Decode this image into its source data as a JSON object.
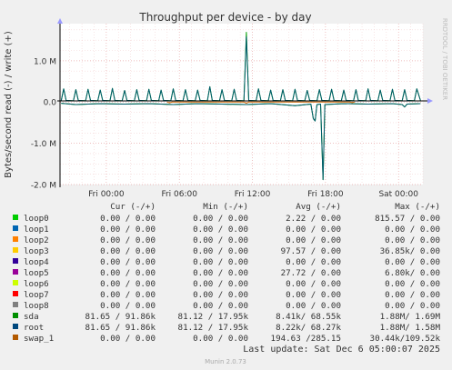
{
  "chart_data": {
    "type": "line",
    "title": "Throughput per device - by day",
    "ylabel": "Bytes/second read (-) / write (+)",
    "side_label": "RRDTOOL / TOBI OETIKER",
    "ylim": [
      -2000000,
      1900000
    ],
    "yticks": [
      {
        "value": 1000000,
        "label": "1.0 M"
      },
      {
        "value": 0,
        "label": "0.0"
      },
      {
        "value": -1000000,
        "label": "-1.0 M"
      },
      {
        "value": -2000000,
        "label": "-2.0 M"
      }
    ],
    "xlim_hours": [
      20.2,
      50.0
    ],
    "xticks": [
      {
        "hour": 24,
        "label": "Fri 00:00"
      },
      {
        "hour": 30,
        "label": "Fri 06:00"
      },
      {
        "hour": 36,
        "label": "Fri 12:00"
      },
      {
        "hour": 42,
        "label": "Fri 18:00"
      },
      {
        "hour": 48,
        "label": "Sat 00:00"
      }
    ],
    "grid": true,
    "series": [
      {
        "name": "sda",
        "color": "#00a000",
        "points": [
          [
            20.3,
            30000
          ],
          [
            20.5,
            320000
          ],
          [
            20.7,
            40000
          ],
          [
            21.3,
            30000
          ],
          [
            21.5,
            300000
          ],
          [
            21.7,
            40000
          ],
          [
            22.3,
            30000
          ],
          [
            22.5,
            310000
          ],
          [
            22.7,
            40000
          ],
          [
            23.3,
            30000
          ],
          [
            23.5,
            290000
          ],
          [
            23.7,
            40000
          ],
          [
            24.3,
            30000
          ],
          [
            24.5,
            330000
          ],
          [
            24.7,
            40000
          ],
          [
            25.3,
            30000
          ],
          [
            25.5,
            280000
          ],
          [
            25.7,
            40000
          ],
          [
            26.3,
            30000
          ],
          [
            26.5,
            300000
          ],
          [
            26.7,
            40000
          ],
          [
            27.3,
            30000
          ],
          [
            27.5,
            310000
          ],
          [
            27.7,
            40000
          ],
          [
            28.3,
            30000
          ],
          [
            28.5,
            290000
          ],
          [
            28.7,
            40000
          ],
          [
            29.3,
            30000
          ],
          [
            29.5,
            320000
          ],
          [
            29.7,
            40000
          ],
          [
            30.3,
            30000
          ],
          [
            30.5,
            300000
          ],
          [
            30.7,
            40000
          ],
          [
            31.3,
            30000
          ],
          [
            31.5,
            290000
          ],
          [
            31.7,
            40000
          ],
          [
            32.3,
            30000
          ],
          [
            32.5,
            370000
          ],
          [
            32.7,
            40000
          ],
          [
            33.3,
            30000
          ],
          [
            33.5,
            300000
          ],
          [
            33.7,
            40000
          ],
          [
            34.3,
            30000
          ],
          [
            34.5,
            310000
          ],
          [
            34.7,
            40000
          ],
          [
            35.3,
            30000
          ],
          [
            35.5,
            1690000
          ],
          [
            35.7,
            40000
          ],
          [
            36.3,
            30000
          ],
          [
            36.5,
            320000
          ],
          [
            36.7,
            40000
          ],
          [
            37.3,
            30000
          ],
          [
            37.5,
            290000
          ],
          [
            37.7,
            40000
          ],
          [
            38.3,
            30000
          ],
          [
            38.5,
            300000
          ],
          [
            38.7,
            40000
          ],
          [
            39.3,
            30000
          ],
          [
            39.5,
            310000
          ],
          [
            39.7,
            40000
          ],
          [
            40.3,
            30000
          ],
          [
            40.5,
            280000
          ],
          [
            40.7,
            40000
          ],
          [
            41.3,
            30000
          ],
          [
            41.5,
            300000
          ],
          [
            41.7,
            40000
          ],
          [
            42.3,
            30000
          ],
          [
            42.5,
            310000
          ],
          [
            42.7,
            40000
          ],
          [
            43.3,
            30000
          ],
          [
            43.5,
            290000
          ],
          [
            43.7,
            40000
          ],
          [
            44.3,
            30000
          ],
          [
            44.5,
            300000
          ],
          [
            44.7,
            40000
          ],
          [
            45.3,
            30000
          ],
          [
            45.5,
            320000
          ],
          [
            45.7,
            40000
          ],
          [
            46.3,
            30000
          ],
          [
            46.5,
            290000
          ],
          [
            46.7,
            40000
          ],
          [
            47.3,
            30000
          ],
          [
            47.5,
            310000
          ],
          [
            47.7,
            40000
          ],
          [
            48.3,
            30000
          ],
          [
            48.5,
            300000
          ],
          [
            48.7,
            40000
          ],
          [
            49.3,
            30000
          ],
          [
            49.5,
            320000
          ],
          [
            49.8,
            40000
          ]
        ]
      },
      {
        "name": "sda",
        "color": "#00a000",
        "points": [
          [
            20.3,
            -30000
          ],
          [
            21.5,
            -60000
          ],
          [
            23.5,
            -40000
          ],
          [
            25.5,
            -50000
          ],
          [
            27.5,
            -40000
          ],
          [
            29.5,
            -60000
          ],
          [
            31.5,
            -40000
          ],
          [
            33.5,
            -50000
          ],
          [
            35.5,
            -60000
          ],
          [
            37.5,
            -40000
          ],
          [
            39.5,
            -90000
          ],
          [
            40.8,
            -50000
          ],
          [
            41.0,
            -400000
          ],
          [
            41.15,
            -460000
          ],
          [
            41.3,
            -60000
          ],
          [
            41.6,
            -50000
          ],
          [
            41.8,
            -1880000
          ],
          [
            41.95,
            -60000
          ],
          [
            43.5,
            -40000
          ],
          [
            45.5,
            -50000
          ],
          [
            47.5,
            -40000
          ],
          [
            48.3,
            -60000
          ],
          [
            48.5,
            -120000
          ],
          [
            48.7,
            -50000
          ],
          [
            49.8,
            -40000
          ]
        ]
      },
      {
        "name": "root",
        "color": "#005a6e",
        "points": [
          [
            20.3,
            30000
          ],
          [
            20.5,
            320000
          ],
          [
            20.7,
            40000
          ],
          [
            21.3,
            30000
          ],
          [
            21.5,
            300000
          ],
          [
            21.7,
            40000
          ],
          [
            22.3,
            30000
          ],
          [
            22.5,
            310000
          ],
          [
            22.7,
            40000
          ],
          [
            23.3,
            30000
          ],
          [
            23.5,
            290000
          ],
          [
            23.7,
            40000
          ],
          [
            24.3,
            30000
          ],
          [
            24.5,
            330000
          ],
          [
            24.7,
            40000
          ],
          [
            25.3,
            30000
          ],
          [
            25.5,
            280000
          ],
          [
            25.7,
            40000
          ],
          [
            26.3,
            30000
          ],
          [
            26.5,
            300000
          ],
          [
            26.7,
            40000
          ],
          [
            27.3,
            30000
          ],
          [
            27.5,
            310000
          ],
          [
            27.7,
            40000
          ],
          [
            28.3,
            30000
          ],
          [
            28.5,
            290000
          ],
          [
            28.7,
            40000
          ],
          [
            29.3,
            30000
          ],
          [
            29.5,
            320000
          ],
          [
            29.7,
            40000
          ],
          [
            30.3,
            30000
          ],
          [
            30.5,
            300000
          ],
          [
            30.7,
            40000
          ],
          [
            31.3,
            30000
          ],
          [
            31.5,
            290000
          ],
          [
            31.7,
            40000
          ],
          [
            32.3,
            30000
          ],
          [
            32.5,
            370000
          ],
          [
            32.7,
            40000
          ],
          [
            33.3,
            30000
          ],
          [
            33.5,
            300000
          ],
          [
            33.7,
            40000
          ],
          [
            34.3,
            30000
          ],
          [
            34.5,
            310000
          ],
          [
            34.7,
            40000
          ],
          [
            35.3,
            30000
          ],
          [
            35.5,
            1580000
          ],
          [
            35.7,
            40000
          ],
          [
            36.3,
            30000
          ],
          [
            36.5,
            320000
          ],
          [
            36.7,
            40000
          ],
          [
            37.3,
            30000
          ],
          [
            37.5,
            290000
          ],
          [
            37.7,
            40000
          ],
          [
            38.3,
            30000
          ],
          [
            38.5,
            300000
          ],
          [
            38.7,
            40000
          ],
          [
            39.3,
            30000
          ],
          [
            39.5,
            310000
          ],
          [
            39.7,
            40000
          ],
          [
            40.3,
            30000
          ],
          [
            40.5,
            280000
          ],
          [
            40.7,
            40000
          ],
          [
            41.3,
            30000
          ],
          [
            41.5,
            300000
          ],
          [
            41.7,
            40000
          ],
          [
            42.3,
            30000
          ],
          [
            42.5,
            310000
          ],
          [
            42.7,
            40000
          ],
          [
            43.3,
            30000
          ],
          [
            43.5,
            290000
          ],
          [
            43.7,
            40000
          ],
          [
            44.3,
            30000
          ],
          [
            44.5,
            300000
          ],
          [
            44.7,
            40000
          ],
          [
            45.3,
            30000
          ],
          [
            45.5,
            320000
          ],
          [
            45.7,
            40000
          ],
          [
            46.3,
            30000
          ],
          [
            46.5,
            290000
          ],
          [
            46.7,
            40000
          ],
          [
            47.3,
            30000
          ],
          [
            47.5,
            310000
          ],
          [
            47.7,
            40000
          ],
          [
            48.3,
            30000
          ],
          [
            48.5,
            300000
          ],
          [
            48.7,
            40000
          ],
          [
            49.3,
            30000
          ],
          [
            49.5,
            320000
          ],
          [
            49.8,
            40000
          ]
        ]
      },
      {
        "name": "root",
        "color": "#005a6e",
        "points": [
          [
            20.3,
            -30000
          ],
          [
            21.5,
            -60000
          ],
          [
            23.5,
            -40000
          ],
          [
            25.5,
            -50000
          ],
          [
            27.5,
            -40000
          ],
          [
            29.5,
            -60000
          ],
          [
            31.5,
            -40000
          ],
          [
            33.5,
            -50000
          ],
          [
            35.5,
            -60000
          ],
          [
            37.5,
            -40000
          ],
          [
            39.5,
            -90000
          ],
          [
            40.8,
            -50000
          ],
          [
            41.0,
            -400000
          ],
          [
            41.15,
            -460000
          ],
          [
            41.3,
            -60000
          ],
          [
            41.6,
            -50000
          ],
          [
            41.8,
            -1880000
          ],
          [
            41.95,
            -60000
          ],
          [
            43.5,
            -40000
          ],
          [
            45.5,
            -50000
          ],
          [
            47.5,
            -40000
          ],
          [
            48.3,
            -60000
          ],
          [
            48.5,
            -120000
          ],
          [
            48.7,
            -50000
          ],
          [
            49.8,
            -40000
          ]
        ]
      },
      {
        "name": "swap_1",
        "color": "#cc6600",
        "points": [
          [
            29.0,
            0
          ],
          [
            29.2,
            -20000
          ],
          [
            29.4,
            0
          ],
          [
            35.3,
            0
          ],
          [
            35.5,
            -30000
          ],
          [
            35.7,
            0
          ],
          [
            44.0,
            0
          ],
          [
            44.2,
            -15000
          ],
          [
            44.4,
            0
          ]
        ]
      }
    ],
    "legend": {
      "headers": [
        "Cur (-/+)",
        "Min (-/+)",
        "Avg (-/+)",
        "Max (-/+)"
      ],
      "rows": [
        {
          "name": "loop0",
          "color": "#00cc00",
          "cur": "0.00 /  0.00",
          "min": "0.00 /  0.00",
          "avg": "2.22 /  0.00",
          "max": "815.57 /  0.00"
        },
        {
          "name": "loop1",
          "color": "#0066b3",
          "cur": "0.00 /  0.00",
          "min": "0.00 /  0.00",
          "avg": "0.00 /  0.00",
          "max": "0.00 /  0.00"
        },
        {
          "name": "loop2",
          "color": "#ff8000",
          "cur": "0.00 /  0.00",
          "min": "0.00 /  0.00",
          "avg": "0.00 /  0.00",
          "max": "0.00 /  0.00"
        },
        {
          "name": "loop3",
          "color": "#ffcc00",
          "cur": "0.00 /  0.00",
          "min": "0.00 /  0.00",
          "avg": "97.57 /  0.00",
          "max": "36.85k/  0.00"
        },
        {
          "name": "loop4",
          "color": "#330099",
          "cur": "0.00 /  0.00",
          "min": "0.00 /  0.00",
          "avg": "0.00 /  0.00",
          "max": "0.00 /  0.00"
        },
        {
          "name": "loop5",
          "color": "#990099",
          "cur": "0.00 /  0.00",
          "min": "0.00 /  0.00",
          "avg": "27.72 /  0.00",
          "max": "6.80k/  0.00"
        },
        {
          "name": "loop6",
          "color": "#ccff00",
          "cur": "0.00 /  0.00",
          "min": "0.00 /  0.00",
          "avg": "0.00 /  0.00",
          "max": "0.00 /  0.00"
        },
        {
          "name": "loop7",
          "color": "#ff0000",
          "cur": "0.00 /  0.00",
          "min": "0.00 /  0.00",
          "avg": "0.00 /  0.00",
          "max": "0.00 /  0.00"
        },
        {
          "name": "loop8",
          "color": "#808080",
          "cur": "0.00 /  0.00",
          "min": "0.00 /  0.00",
          "avg": "0.00 /  0.00",
          "max": "0.00 /  0.00"
        },
        {
          "name": "sda",
          "color": "#008f00",
          "cur": "81.65 / 91.86k",
          "min": "81.12 / 17.95k",
          "avg": "8.41k/ 68.55k",
          "max": "1.88M/  1.69M"
        },
        {
          "name": "root",
          "color": "#00487d",
          "cur": "81.65 / 91.86k",
          "min": "81.12 / 17.95k",
          "avg": "8.22k/ 68.27k",
          "max": "1.88M/  1.58M"
        },
        {
          "name": "swap_1",
          "color": "#b35a00",
          "cur": "0.00 /  0.00",
          "min": "0.00 /  0.00",
          "avg": "194.63 /285.15",
          "max": "30.44k/109.52k"
        }
      ]
    },
    "last_update": "Last update: Sat Dec  6 05:00:07 2025",
    "footer": "Munin 2.0.73"
  }
}
